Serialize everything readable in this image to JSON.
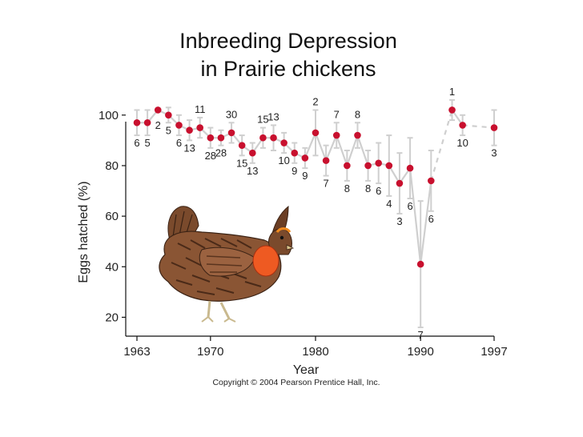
{
  "slide": {
    "title_line1": "Inbreeding Depression",
    "title_line2": "in Prairie chickens",
    "copyright": "Copyright © 2004 Pearson Prentice Hall, Inc."
  },
  "chart_data": {
    "type": "line",
    "title": "",
    "xlabel": "Year",
    "ylabel": "Eggs hatched (%)",
    "xlim": [
      1963,
      1997
    ],
    "ylim": [
      10,
      105
    ],
    "yticks": [
      20,
      40,
      60,
      80,
      100
    ],
    "xticks": [
      1963,
      1970,
      1980,
      1990,
      1997
    ],
    "grid": false,
    "marker_color": "#c8102e",
    "line_color": "#cfcfcf",
    "illustration": "prairie-chicken",
    "points": [
      {
        "x": 1963,
        "y": 97,
        "err": 5,
        "n": "6"
      },
      {
        "x": 1964,
        "y": 97,
        "err": 5,
        "n": "5"
      },
      {
        "x": 1965,
        "y": 102,
        "err": 0,
        "n": "2"
      },
      {
        "x": 1966,
        "y": 100,
        "err": 3,
        "n": "5"
      },
      {
        "x": 1967,
        "y": 96,
        "err": 4,
        "n": "6"
      },
      {
        "x": 1968,
        "y": 94,
        "err": 4,
        "n": "13"
      },
      {
        "x": 1969,
        "y": 95,
        "err": 4,
        "n": "11"
      },
      {
        "x": 1970,
        "y": 91,
        "err": 4,
        "n": "28"
      },
      {
        "x": 1971,
        "y": 91,
        "err": 3,
        "n": "28"
      },
      {
        "x": 1972,
        "y": 93,
        "err": 4,
        "n": "30"
      },
      {
        "x": 1973,
        "y": 88,
        "err": 4,
        "n": "15"
      },
      {
        "x": 1974,
        "y": 85,
        "err": 4,
        "n": "13"
      },
      {
        "x": 1975,
        "y": 91,
        "err": 4,
        "n": "15"
      },
      {
        "x": 1976,
        "y": 91,
        "err": 5,
        "n": "13"
      },
      {
        "x": 1977,
        "y": 89,
        "err": 4,
        "n": "10"
      },
      {
        "x": 1978,
        "y": 85,
        "err": 4,
        "n": "9"
      },
      {
        "x": 1979,
        "y": 83,
        "err": 4,
        "n": "9"
      },
      {
        "x": 1980,
        "y": 93,
        "err": 9,
        "n": "2"
      },
      {
        "x": 1981,
        "y": 82,
        "err": 6,
        "n": "7"
      },
      {
        "x": 1982,
        "y": 92,
        "err": 5,
        "n": "7"
      },
      {
        "x": 1983,
        "y": 80,
        "err": 6,
        "n": "8"
      },
      {
        "x": 1984,
        "y": 92,
        "err": 5,
        "n": "8"
      },
      {
        "x": 1985,
        "y": 80,
        "err": 6,
        "n": "8"
      },
      {
        "x": 1986,
        "y": 81,
        "err": 8,
        "n": "6"
      },
      {
        "x": 1987,
        "y": 80,
        "err": 12,
        "n": "4"
      },
      {
        "x": 1988,
        "y": 73,
        "err": 12,
        "n": "3"
      },
      {
        "x": 1989,
        "y": 79,
        "err": 12,
        "n": "6"
      },
      {
        "x": 1990,
        "y": 41,
        "err": 25,
        "n": "7"
      },
      {
        "x": 1991,
        "y": 74,
        "err": 12,
        "n": "6"
      },
      {
        "x": 1993,
        "y": 102,
        "err": 4,
        "n": "1"
      },
      {
        "x": 1994,
        "y": 96,
        "err": 4,
        "n": "10"
      },
      {
        "x": 1997,
        "y": 95,
        "err": 7,
        "n": "3"
      }
    ]
  }
}
